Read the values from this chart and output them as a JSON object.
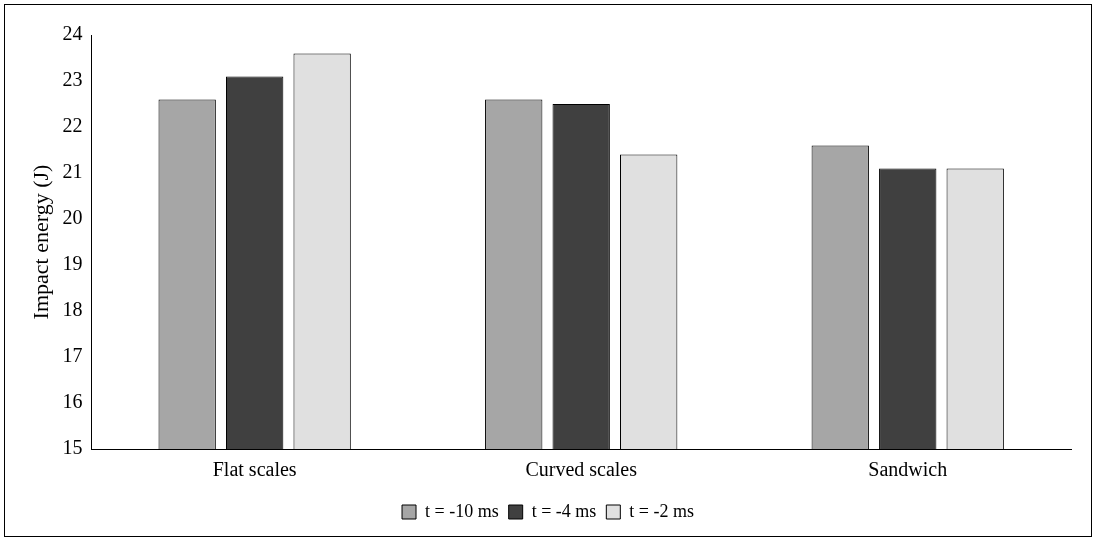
{
  "chart_data": {
    "type": "bar",
    "ylabel": "Impact energy (J)",
    "categories": [
      "Flat scales",
      "Curved scales",
      "Sandwich"
    ],
    "series": [
      {
        "name": "t = -10 ms",
        "color": "#a6a6a6",
        "values": [
          22.6,
          22.6,
          21.6
        ]
      },
      {
        "name": "t = -4 ms",
        "color": "#404040",
        "values": [
          23.1,
          22.5,
          21.1
        ]
      },
      {
        "name": "t = -2 ms",
        "color": "#e0e0e0",
        "values": [
          23.6,
          21.4,
          21.1
        ]
      }
    ],
    "ylim": [
      15,
      24
    ],
    "yticks": [
      15,
      16,
      17,
      18,
      19,
      20,
      21,
      22,
      23,
      24
    ],
    "grid": false,
    "legend": "bottom"
  }
}
